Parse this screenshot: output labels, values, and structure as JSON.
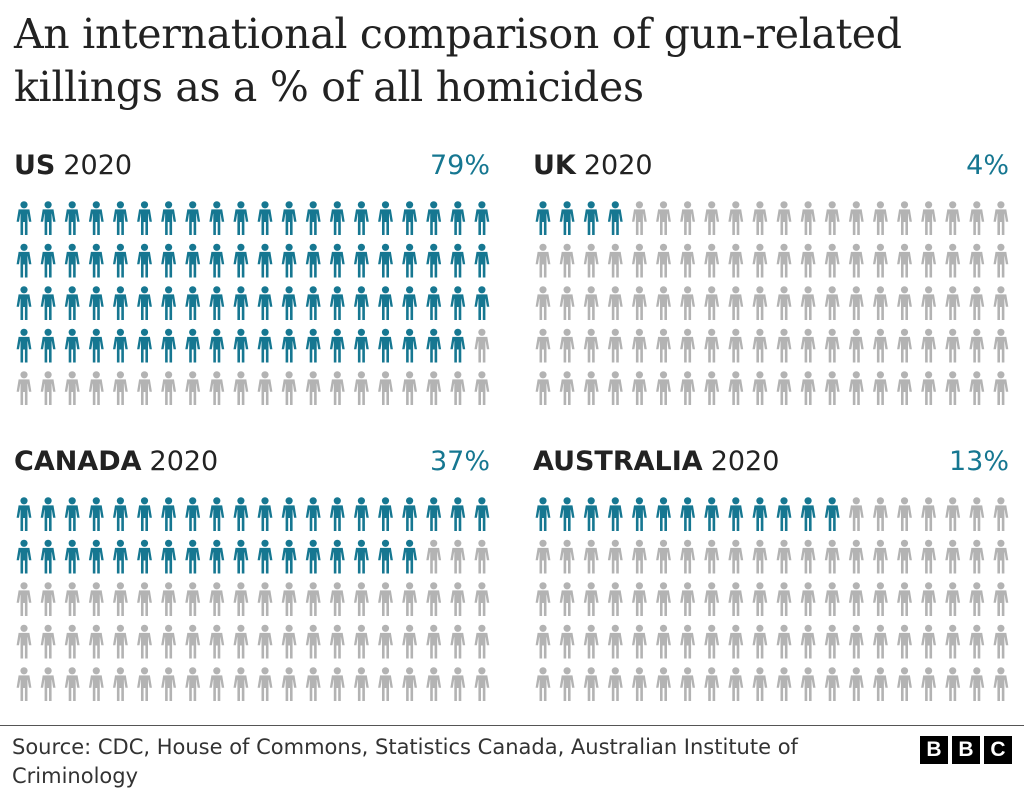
{
  "title": "An international comparison of gun-related killings as a % of all homicides",
  "source": "Source: CDC, House of Commons, Statistics Canada, Australian Institute of Criminology",
  "logo": {
    "letters": [
      "B",
      "B",
      "C"
    ]
  },
  "colors": {
    "highlight": "#167791",
    "base": "#b3b3b3",
    "text": "#222222"
  },
  "icon_name": "person-icon",
  "chart_data": [
    {
      "type": "pictogram",
      "country": "US",
      "year": "2020",
      "value": 79,
      "label": "79%",
      "total": 100,
      "rows": 5,
      "cols": 20
    },
    {
      "type": "pictogram",
      "country": "UK",
      "year": "2020",
      "value": 4,
      "label": "4%",
      "total": 100,
      "rows": 5,
      "cols": 20
    },
    {
      "type": "pictogram",
      "country": "CANADA",
      "year": "2020",
      "value": 37,
      "label": "37%",
      "total": 100,
      "rows": 5,
      "cols": 20
    },
    {
      "type": "pictogram",
      "country": "AUSTRALIA",
      "year": "2020",
      "value": 13,
      "label": "13%",
      "total": 100,
      "rows": 5,
      "cols": 20
    }
  ]
}
